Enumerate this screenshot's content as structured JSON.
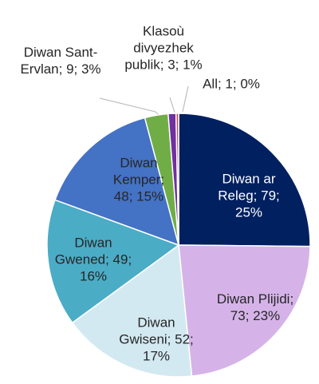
{
  "chart_data": {
    "type": "pie",
    "values": [
      79,
      73,
      52,
      49,
      48,
      9,
      3,
      1
    ],
    "value_labels": [
      "Diwan ar Releg; 79; 25%",
      "Diwan Plijidi; 73; 23%",
      "Diwan Gwiseni; 52; 17%",
      "Diwan Gwened; 49; 16%",
      "Diwan Kemper; 48; 15%",
      "Diwan Sant-Ervlan; 9; 3%",
      "Klasoù divyezhek publik; 3; 1%",
      "All; 1; 0%"
    ],
    "colors": [
      "#002060",
      "#d5b3e8",
      "#d3e9f2",
      "#4bacc6",
      "#4472c4",
      "#70ad47",
      "#7030a0",
      "#c0504d"
    ],
    "label_colors": [
      "#ffffff",
      "#262626",
      "#262626",
      "#262626",
      "#262626",
      "#262626",
      "#262626",
      "#262626"
    ]
  }
}
